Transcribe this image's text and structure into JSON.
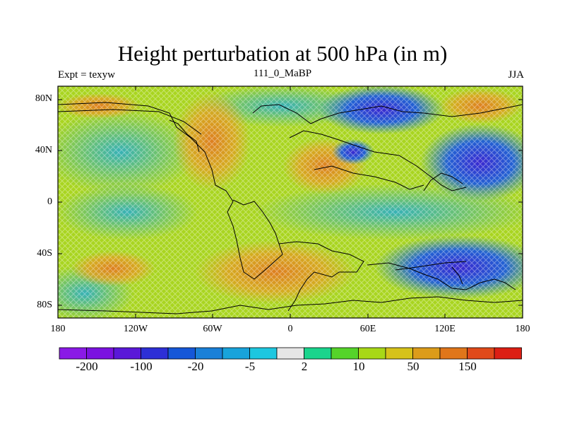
{
  "map": {
    "title": "Height perturbation at 500 hPa (in m)",
    "subtitle_left": "Expt = texyw",
    "subtitle_center": "111_0_MaBP",
    "subtitle_right": "JJA",
    "lat_ticks": [
      "80N",
      "40N",
      "0",
      "40S",
      "80S"
    ],
    "lon_ticks": [
      "180",
      "120W",
      "60W",
      "0",
      "60E",
      "120E",
      "180"
    ]
  },
  "colorbar": {
    "colors": [
      "#8a1ae6",
      "#7b12e0",
      "#5a18d8",
      "#2d2fd6",
      "#1557d8",
      "#1a80d8",
      "#18a3db",
      "#1dc7e0",
      "#e6e6e6",
      "#1ad48c",
      "#55d42a",
      "#a8d817",
      "#d6c21a",
      "#dc9c1a",
      "#e0761a",
      "#e04a1a",
      "#dc1f14"
    ],
    "labels": [
      "-200",
      "-100",
      "-20",
      "-5",
      "2",
      "10",
      "50",
      "150"
    ]
  },
  "colors": {
    "ocean_base": "#a9d520",
    "warm": "#e0a020",
    "warm_core": "#e07a20",
    "cold": "#1c5cdc",
    "cold_core": "#5a2ad8",
    "coast": "#000000"
  }
}
